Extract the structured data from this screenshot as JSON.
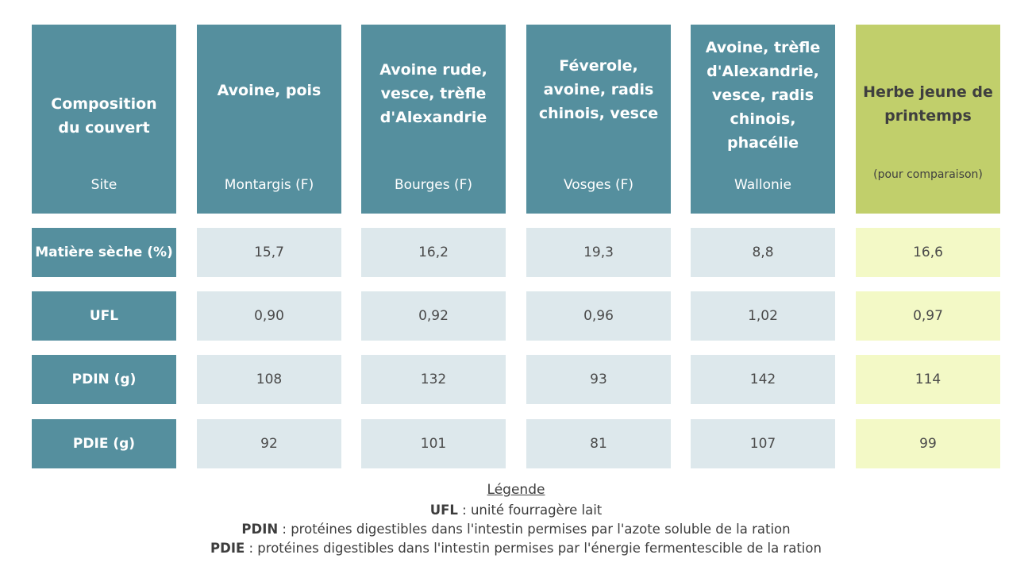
{
  "table": {
    "columns": [
      {
        "title": "Composition du couvert",
        "site": "Site",
        "is_label": true
      },
      {
        "title": "Avoine, pois",
        "site": "Montargis (F)"
      },
      {
        "title": "Avoine rude, vesce, trèfle d'Alexandrie",
        "site": "Bourges (F)"
      },
      {
        "title": "Féverole, avoine, radis chinois, vesce",
        "site": "Vosges (F)"
      },
      {
        "title": "Avoine, trèfle d'Alexandrie, vesce, radis chinois, phacélie",
        "site": "Wallonie"
      },
      {
        "title": "Herbe jeune de printemps",
        "site": "(pour comparaison)",
        "highlight_color": "#c1cf6b"
      }
    ],
    "rows": [
      {
        "label": "Matière sèche (%)",
        "values": [
          "15,7",
          "16,2",
          "19,3",
          "8,8",
          "16,6"
        ]
      },
      {
        "label": "UFL",
        "values": [
          "0,90",
          "0,92",
          "0,96",
          "1,02",
          "0,97"
        ]
      },
      {
        "label": "PDIN (g)",
        "values": [
          "108",
          "132",
          "93",
          "142",
          "114"
        ]
      },
      {
        "label": "PDIE (g)",
        "values": [
          "92",
          "101",
          "81",
          "107",
          "99"
        ]
      }
    ],
    "colors": {
      "header": "#558f9e",
      "cell": "#dde8ec",
      "highlight_header": "#c1cf6b",
      "highlight_cell": "#f3f9c6"
    }
  },
  "legend": {
    "title": "Légende",
    "items": [
      {
        "term": "UFL",
        "definition": " : unité fourragère lait"
      },
      {
        "term": "PDIN",
        "definition": " : protéines digestibles dans l'intestin permises par l'azote soluble de la ration"
      },
      {
        "term": "PDIE",
        "definition": " : protéines digestibles dans l'intestin permises par l'énergie fermentescible de la ration"
      }
    ]
  }
}
